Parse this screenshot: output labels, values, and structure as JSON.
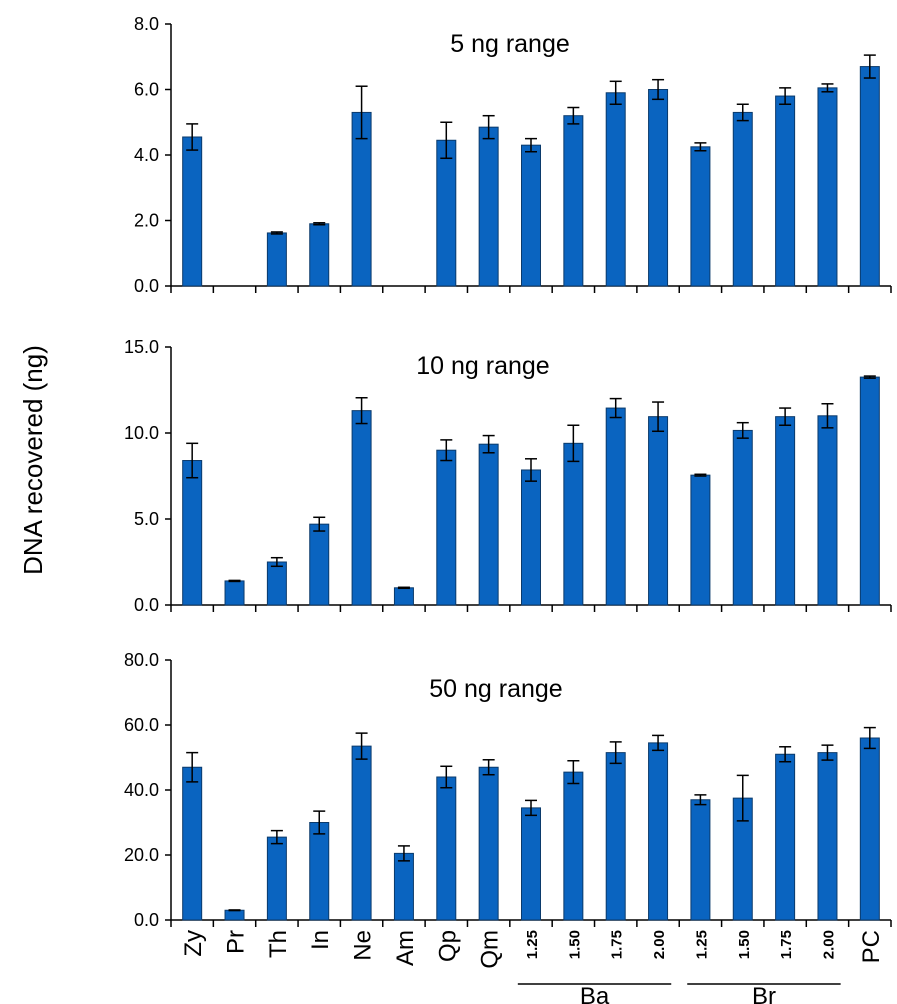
{
  "ylabel": "DNA recovered (ng)",
  "bar_color": "#0a64c0",
  "bar_stroke": "#0b3a6b",
  "chart_data": [
    {
      "type": "bar",
      "title": "5 ng range",
      "ylim": [
        0,
        8
      ],
      "yticks": [
        "0.0",
        "2.0",
        "4.0",
        "6.0",
        "8.0"
      ],
      "categories": [
        "Zy",
        "Pr",
        "Th",
        "In",
        "Ne",
        "Am",
        "Qp",
        "Qm",
        "Ba 1.25",
        "Ba 1.50",
        "Ba 1.75",
        "Ba 2.00",
        "Br 1.25",
        "Br 1.50",
        "Br 1.75",
        "Br 2.00",
        "PC"
      ],
      "values": [
        4.55,
        0,
        1.62,
        1.9,
        5.3,
        0,
        4.45,
        4.85,
        4.3,
        5.2,
        5.9,
        6.0,
        4.25,
        5.3,
        5.8,
        6.05,
        6.7
      ],
      "errors": [
        0.4,
        0,
        0.03,
        0.03,
        0.8,
        0,
        0.55,
        0.35,
        0.2,
        0.25,
        0.35,
        0.3,
        0.12,
        0.25,
        0.25,
        0.12,
        0.35
      ],
      "xlabel": "",
      "grid": false
    },
    {
      "type": "bar",
      "title": "10 ng range",
      "ylim": [
        0,
        15
      ],
      "yticks": [
        "0.0",
        "5.0",
        "10.0",
        "15.0"
      ],
      "categories": [
        "Zy",
        "Pr",
        "Th",
        "In",
        "Ne",
        "Am",
        "Qp",
        "Qm",
        "Ba 1.25",
        "Ba 1.50",
        "Ba 1.75",
        "Ba 2.00",
        "Br 1.25",
        "Br 1.50",
        "Br 1.75",
        "Br 2.00",
        "PC"
      ],
      "values": [
        8.4,
        1.4,
        2.5,
        4.7,
        11.3,
        1.0,
        9.0,
        9.35,
        7.85,
        9.4,
        11.45,
        10.95,
        7.55,
        10.15,
        10.95,
        11.0,
        13.25
      ],
      "errors": [
        1.0,
        0.03,
        0.25,
        0.4,
        0.75,
        0.03,
        0.6,
        0.5,
        0.65,
        1.05,
        0.55,
        0.85,
        0.05,
        0.45,
        0.5,
        0.7,
        0.06
      ],
      "xlabel": "",
      "grid": false
    },
    {
      "type": "bar",
      "title": "50 ng range",
      "ylim": [
        0,
        80
      ],
      "yticks": [
        "0.0",
        "20.0",
        "40.0",
        "60.0",
        "80.0"
      ],
      "categories": [
        "Zy",
        "Pr",
        "Th",
        "In",
        "Ne",
        "Am",
        "Qp",
        "Qm",
        "Ba 1.25",
        "Ba 1.50",
        "Ba 1.75",
        "Ba 2.00",
        "Br 1.25",
        "Br 1.50",
        "Br 1.75",
        "Br 2.00",
        "PC"
      ],
      "values": [
        47.0,
        3.0,
        25.5,
        30.0,
        53.5,
        20.5,
        44.0,
        47.0,
        34.5,
        45.5,
        51.5,
        54.5,
        37.0,
        37.5,
        51.0,
        51.5,
        56.0
      ],
      "errors": [
        4.5,
        0.1,
        2.0,
        3.5,
        4.0,
        2.3,
        3.3,
        2.3,
        2.3,
        3.5,
        3.3,
        2.3,
        1.5,
        7.0,
        2.3,
        2.3,
        3.2
      ],
      "xlabel": "",
      "grid": false
    }
  ],
  "x_axis": {
    "main_labels": [
      "Zy",
      "Pr",
      "Th",
      "In",
      "Ne",
      "Am",
      "Qp",
      "Qm"
    ],
    "sub_labels": [
      "1.25",
      "1.50",
      "1.75",
      "2.00",
      "1.25",
      "1.50",
      "1.75",
      "2.00"
    ],
    "groups": [
      "Ba",
      "Br"
    ],
    "end_label": "PC"
  }
}
